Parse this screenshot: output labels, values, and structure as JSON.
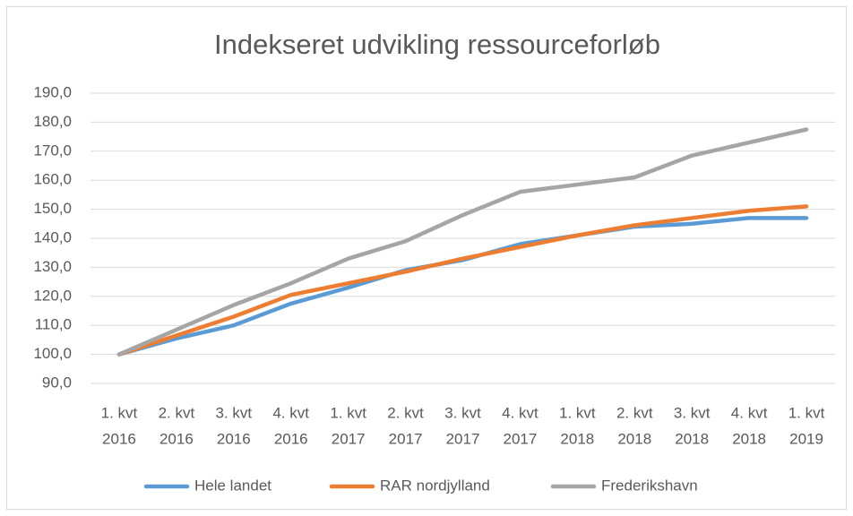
{
  "chart_data": {
    "type": "line",
    "title": "Indekseret udvikling ressourceforløb",
    "categories": [
      [
        "1. kvt",
        "2016"
      ],
      [
        "2. kvt",
        "2016"
      ],
      [
        "3. kvt",
        "2016"
      ],
      [
        "4. kvt",
        "2016"
      ],
      [
        "1. kvt",
        "2017"
      ],
      [
        "2. kvt",
        "2017"
      ],
      [
        "3. kvt",
        "2017"
      ],
      [
        "4. kvt",
        "2017"
      ],
      [
        "1. kvt",
        "2018"
      ],
      [
        "2. kvt",
        "2018"
      ],
      [
        "3. kvt",
        "2018"
      ],
      [
        "4. kvt",
        "2018"
      ],
      [
        "1. kvt",
        "2019"
      ]
    ],
    "series": [
      {
        "name": "Hele landet",
        "color": "#5b9bd5",
        "values": [
          100,
          105.5,
          110,
          117.5,
          123,
          129,
          132.5,
          138,
          141,
          144,
          145,
          147,
          147
        ]
      },
      {
        "name": "RAR nordjylland",
        "color": "#ed7d31",
        "values": [
          100,
          106.5,
          113,
          120.5,
          124.5,
          128.5,
          133,
          137,
          141,
          144.5,
          147,
          149.5,
          151
        ]
      },
      {
        "name": "Frederikshavn",
        "color": "#a5a5a5",
        "values": [
          100,
          108.5,
          117,
          124.5,
          133,
          139,
          148,
          156,
          158.5,
          161,
          168.5,
          173,
          177.5
        ]
      }
    ],
    "ylim": [
      90,
      190
    ],
    "yticks": [
      {
        "value": 90,
        "label": "90,0"
      },
      {
        "value": 100,
        "label": "100,0"
      },
      {
        "value": 110,
        "label": "110,0"
      },
      {
        "value": 120,
        "label": "120,0"
      },
      {
        "value": 130,
        "label": "130,0"
      },
      {
        "value": 140,
        "label": "140,0"
      },
      {
        "value": 150,
        "label": "150,0"
      },
      {
        "value": 160,
        "label": "160,0"
      },
      {
        "value": 170,
        "label": "170,0"
      },
      {
        "value": 180,
        "label": "180,0"
      },
      {
        "value": 190,
        "label": "190,0"
      }
    ],
    "grid": true,
    "legend": "bottom"
  }
}
